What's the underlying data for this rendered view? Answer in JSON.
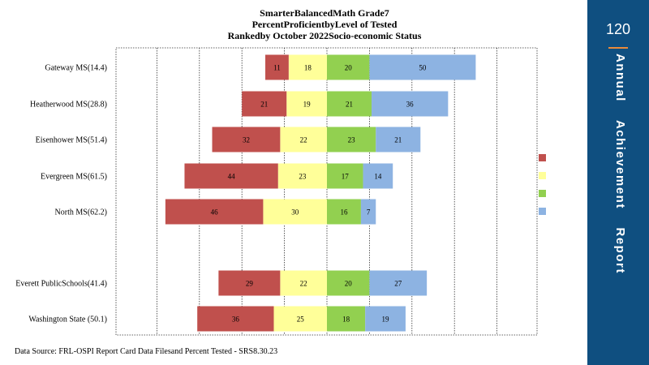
{
  "sidebar": {
    "page_number": "120",
    "title": "Annual    Achievement    Report",
    "accent": "#e98b3a",
    "background": "#0f4f80"
  },
  "footer": {
    "source": "Data Source: FRL-OSPI Report Card Data Filesand Percent  Tested - SRS8.30.23"
  },
  "chart_data": {
    "type": "bar",
    "orientation": "horizontal",
    "stacked": "diverging",
    "title": "SmarterBalancedMath Grade7",
    "subtitle": "PercentProficientbyLevel of Tested",
    "subtitle2": "Rankedby October 2022Socio-economic Status",
    "categories": [
      "Gateway  MS(14.4)",
      "Heatherwood  MS(28.8)",
      "Eisenhower MS(51.4)",
      "Evergreen  MS(61.5)",
      "North MS(62.2)",
      "Everett PublicSchools(41.4)",
      "Washington State (50.1)"
    ],
    "series": [
      {
        "color": "#c0504d",
        "values": [
          11,
          21,
          32,
          44,
          46,
          29,
          36
        ]
      },
      {
        "color": "#ffff99",
        "values": [
          18,
          19,
          22,
          23,
          30,
          22,
          25
        ]
      },
      {
        "color": "#92d050",
        "values": [
          20,
          21,
          23,
          17,
          16,
          20,
          18
        ]
      },
      {
        "color": "#8db3e2",
        "values": [
          50,
          36,
          21,
          14,
          7,
          27,
          19
        ]
      }
    ],
    "below_proficiency_series": 2,
    "grid": true,
    "legend": "right"
  }
}
